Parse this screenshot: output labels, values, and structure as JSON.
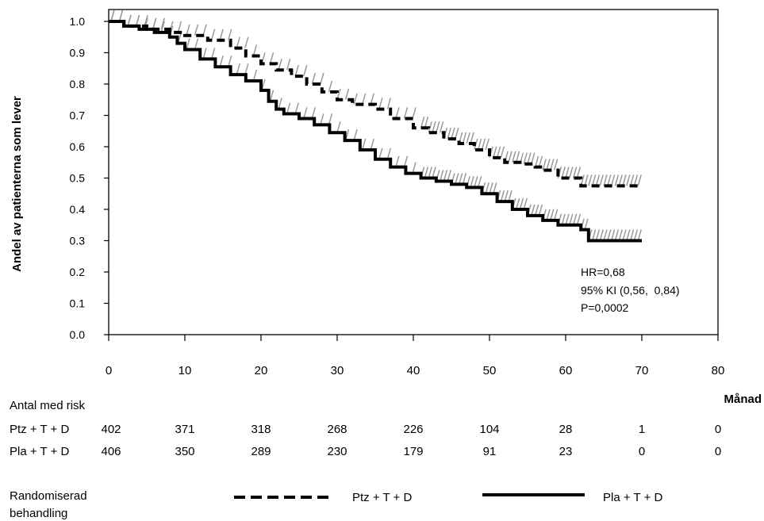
{
  "chart_data": {
    "type": "line",
    "subtype": "kaplan-meier",
    "ylabel": "Andel av patienterna som lever",
    "xlabel": "Månad",
    "xlim": [
      0,
      80
    ],
    "ylim": [
      0,
      1
    ],
    "x_ticks": [
      "0",
      "10",
      "20",
      "30",
      "40",
      "50",
      "60",
      "70",
      "80"
    ],
    "y_ticks": [
      "0.0",
      "0.1",
      "0.2",
      "0.3",
      "0.4",
      "0.5",
      "0.6",
      "0.7",
      "0.8",
      "0.9",
      "1.0"
    ],
    "annotations": [
      "HR=0,68",
      "95% KI (0,56,  0,84)",
      "P=0,0002"
    ],
    "series": [
      {
        "name": "Ptz + T + D",
        "style": "dashed",
        "color": "#000000",
        "x": [
          0,
          2,
          5,
          8,
          10,
          13,
          16,
          18,
          20,
          22,
          24,
          26,
          28,
          30,
          32,
          35,
          37,
          40,
          42,
          44,
          46,
          48,
          50,
          52,
          54,
          56,
          57,
          59,
          61,
          62,
          64,
          66,
          70
        ],
        "y": [
          1.0,
          0.985,
          0.975,
          0.965,
          0.955,
          0.94,
          0.915,
          0.89,
          0.865,
          0.845,
          0.825,
          0.8,
          0.775,
          0.75,
          0.735,
          0.72,
          0.69,
          0.66,
          0.645,
          0.625,
          0.61,
          0.59,
          0.565,
          0.55,
          0.545,
          0.535,
          0.525,
          0.5,
          0.5,
          0.475,
          0.475,
          0.475,
          0.475
        ]
      },
      {
        "name": "Pla + T + D",
        "style": "solid",
        "color": "#000000",
        "x": [
          0,
          2,
          4,
          6,
          8,
          9,
          10,
          12,
          14,
          16,
          18,
          20,
          21,
          22,
          23,
          25,
          27,
          29,
          31,
          33,
          35,
          37,
          39,
          41,
          43,
          45,
          47,
          49,
          51,
          53,
          55,
          57,
          59,
          61,
          62,
          63,
          65,
          70
        ],
        "y": [
          1.0,
          0.985,
          0.975,
          0.965,
          0.95,
          0.93,
          0.91,
          0.88,
          0.855,
          0.83,
          0.81,
          0.78,
          0.745,
          0.72,
          0.705,
          0.69,
          0.67,
          0.645,
          0.62,
          0.59,
          0.56,
          0.535,
          0.515,
          0.5,
          0.49,
          0.48,
          0.47,
          0.45,
          0.425,
          0.4,
          0.38,
          0.365,
          0.35,
          0.35,
          0.335,
          0.3,
          0.3,
          0.3
        ]
      }
    ]
  },
  "risk_table": {
    "title": "Antal med risk",
    "rows": [
      {
        "label": "Ptz + T + D",
        "values": [
          "402",
          "371",
          "318",
          "268",
          "226",
          "104",
          "28",
          "1",
          "0"
        ]
      },
      {
        "label": "Pla + T + D",
        "values": [
          "406",
          "350",
          "289",
          "230",
          "179",
          "91",
          "23",
          "0",
          "0"
        ]
      }
    ]
  },
  "legend": {
    "title_line1": "Randomiserad",
    "title_line2": "behandling",
    "items": [
      {
        "label": "Ptz + T + D",
        "style": "dashed"
      },
      {
        "label": "Pla + T + D",
        "style": "solid"
      }
    ]
  }
}
